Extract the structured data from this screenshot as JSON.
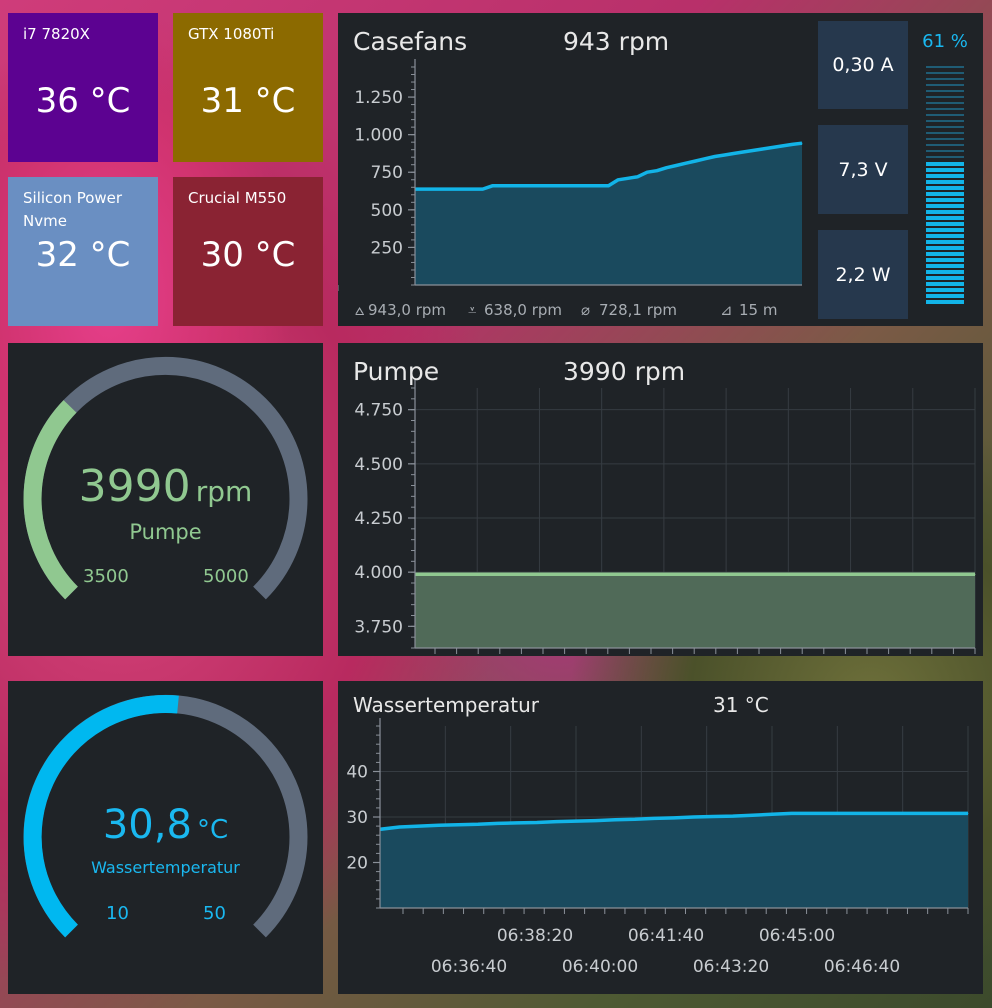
{
  "temps": [
    {
      "label": "i7 7820X",
      "value": "36 °C",
      "color": "#5c0291"
    },
    {
      "label": "GTX 1080Ti",
      "value": "31 °C",
      "color": "#8c6a00"
    },
    {
      "label": "Silicon Power Nvme",
      "value": "32 °C",
      "color": "#6a8fc2"
    },
    {
      "label": "Crucial M550",
      "value": "30 °C",
      "color": "#8a2333"
    }
  ],
  "casefans": {
    "title": "Casefans",
    "value": "943 rpm",
    "yticks": [
      "1.250",
      "1.000",
      "750",
      "500",
      "250"
    ],
    "stats": {
      "max": "943,0 rpm",
      "min": "638,0 rpm",
      "avg": "728,1 rpm",
      "span": "15 m"
    },
    "current": "0,30 A",
    "voltage": "7,3 V",
    "power": "2,2 W",
    "percent": "61 %",
    "level": 0.61
  },
  "pump_gauge": {
    "value": "3990",
    "unit": "rpm",
    "label": "Pumpe",
    "min": "3500",
    "max": "5000",
    "level": 0.33
  },
  "pump_chart": {
    "title": "Pumpe",
    "value": "3990 rpm",
    "yticks": [
      "4.750",
      "4.500",
      "4.250",
      "4.000",
      "3.750"
    ]
  },
  "water_gauge": {
    "value": "30,8",
    "unit": "°C",
    "label": "Wassertemperatur",
    "min": "10",
    "max": "50",
    "level": 0.52
  },
  "water_chart": {
    "title": "Wassertemperatur",
    "value": "31 °C",
    "yticks": [
      "40",
      "30",
      "20"
    ],
    "xticks_upper": [
      "06:38:20",
      "06:41:40",
      "06:45:00"
    ],
    "xticks_lower": [
      "06:36:40",
      "06:40:00",
      "06:43:20",
      "06:46:40"
    ]
  },
  "colors": {
    "accent": "#00b8f0",
    "green": "#90c890",
    "track": "#5f6b7c",
    "panel": "#1f2327"
  },
  "chart_data": [
    {
      "type": "area",
      "title": "Casefans",
      "ylim": [
        0,
        1450
      ],
      "yticks": [
        250,
        500,
        750,
        1000,
        1250
      ],
      "x": [
        0,
        1,
        2,
        3,
        4,
        5,
        6,
        7,
        8,
        9,
        10,
        11,
        12,
        13,
        14,
        15,
        16,
        17,
        18,
        19,
        20,
        21,
        22,
        23,
        24,
        25,
        26,
        27,
        28,
        29,
        30,
        31,
        32,
        33,
        34,
        35,
        36,
        37,
        38,
        39,
        40
      ],
      "series": [
        {
          "values": [
            638,
            638,
            638,
            638,
            638,
            638,
            638,
            638,
            660,
            660,
            660,
            660,
            660,
            660,
            660,
            660,
            660,
            660,
            660,
            660,
            660,
            700,
            710,
            720,
            750,
            760,
            780,
            795,
            810,
            825,
            840,
            855,
            865,
            875,
            885,
            895,
            905,
            915,
            925,
            935,
            943
          ]
        }
      ]
    },
    {
      "type": "area",
      "title": "Pumpe",
      "ylim": [
        3650,
        4850
      ],
      "yticks": [
        3750,
        4000,
        4250,
        4500,
        4750
      ],
      "x": [
        0,
        1,
        2,
        3,
        4,
        5,
        6,
        7,
        8,
        9,
        10
      ],
      "series": [
        {
          "values": [
            3990,
            3990,
            3990,
            3990,
            3990,
            3990,
            3990,
            3990,
            3990,
            3990,
            3990
          ]
        }
      ]
    },
    {
      "type": "area",
      "title": "Wassertemperatur",
      "ylim": [
        10,
        50
      ],
      "yticks": [
        20,
        30,
        40
      ],
      "xtick_labels": [
        "06:36:40",
        "06:38:20",
        "06:40:00",
        "06:41:40",
        "06:43:20",
        "06:45:00",
        "06:46:40"
      ],
      "x": [
        0,
        1,
        2,
        3,
        4,
        5,
        6,
        7,
        8,
        9,
        10,
        11,
        12,
        13,
        14,
        15,
        16,
        17,
        18,
        19,
        20,
        21,
        22,
        23,
        24,
        25,
        26,
        27,
        28,
        29,
        30
      ],
      "series": [
        {
          "values": [
            27.3,
            27.8,
            28.0,
            28.2,
            28.3,
            28.4,
            28.6,
            28.7,
            28.8,
            29.0,
            29.1,
            29.2,
            29.4,
            29.5,
            29.7,
            29.8,
            30.0,
            30.1,
            30.2,
            30.4,
            30.6,
            30.8,
            30.8,
            30.8,
            30.8,
            30.8,
            30.8,
            30.8,
            30.8,
            30.8,
            30.8
          ]
        }
      ]
    }
  ]
}
